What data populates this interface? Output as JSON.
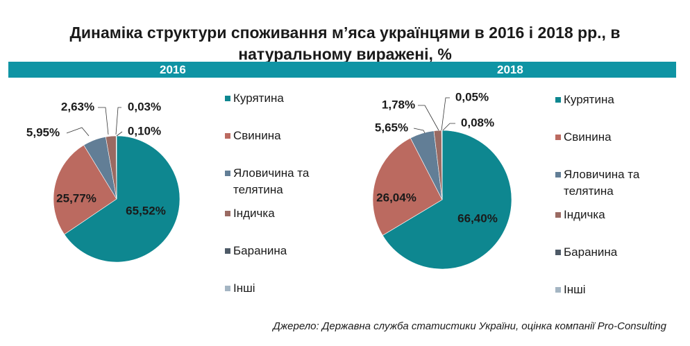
{
  "title_line1": "Динаміка структури споживання м’яса українцями в 2016 і 2018 рр., в",
  "title_line2": "натуральному виражені, %",
  "source": "Джерело: Державна служба статистики України, оцінка компанії Pro-Consulting",
  "colors": {
    "header_bar": "#0f94a4",
    "categories": [
      "#0e8790",
      "#bb6a60",
      "#627e96",
      "#9a6a62",
      "#4e5a67",
      "#a4b5c3"
    ]
  },
  "chart_data": [
    {
      "type": "pie",
      "title": "2016",
      "categories": [
        "Курятина",
        "Свинина",
        "Яловичина та телятина",
        "Індичка",
        "Баранина",
        "Інші"
      ],
      "values": [
        65.52,
        25.77,
        5.95,
        2.63,
        0.03,
        0.1
      ],
      "labels": [
        "65,52%",
        "25,77%",
        "5,95%",
        "2,63%",
        "0,03%",
        "0,10%"
      ],
      "legend_position": "right"
    },
    {
      "type": "pie",
      "title": "2018",
      "categories": [
        "Курятина",
        "Свинина",
        "Яловичина та телятина",
        "Індичка",
        "Баранина",
        "Інші"
      ],
      "values": [
        66.4,
        26.04,
        5.65,
        1.78,
        0.05,
        0.08
      ],
      "labels": [
        "66,40%",
        "26,04%",
        "5,65%",
        "1,78%",
        "0,05%",
        "0,08%"
      ],
      "legend_position": "right"
    }
  ]
}
